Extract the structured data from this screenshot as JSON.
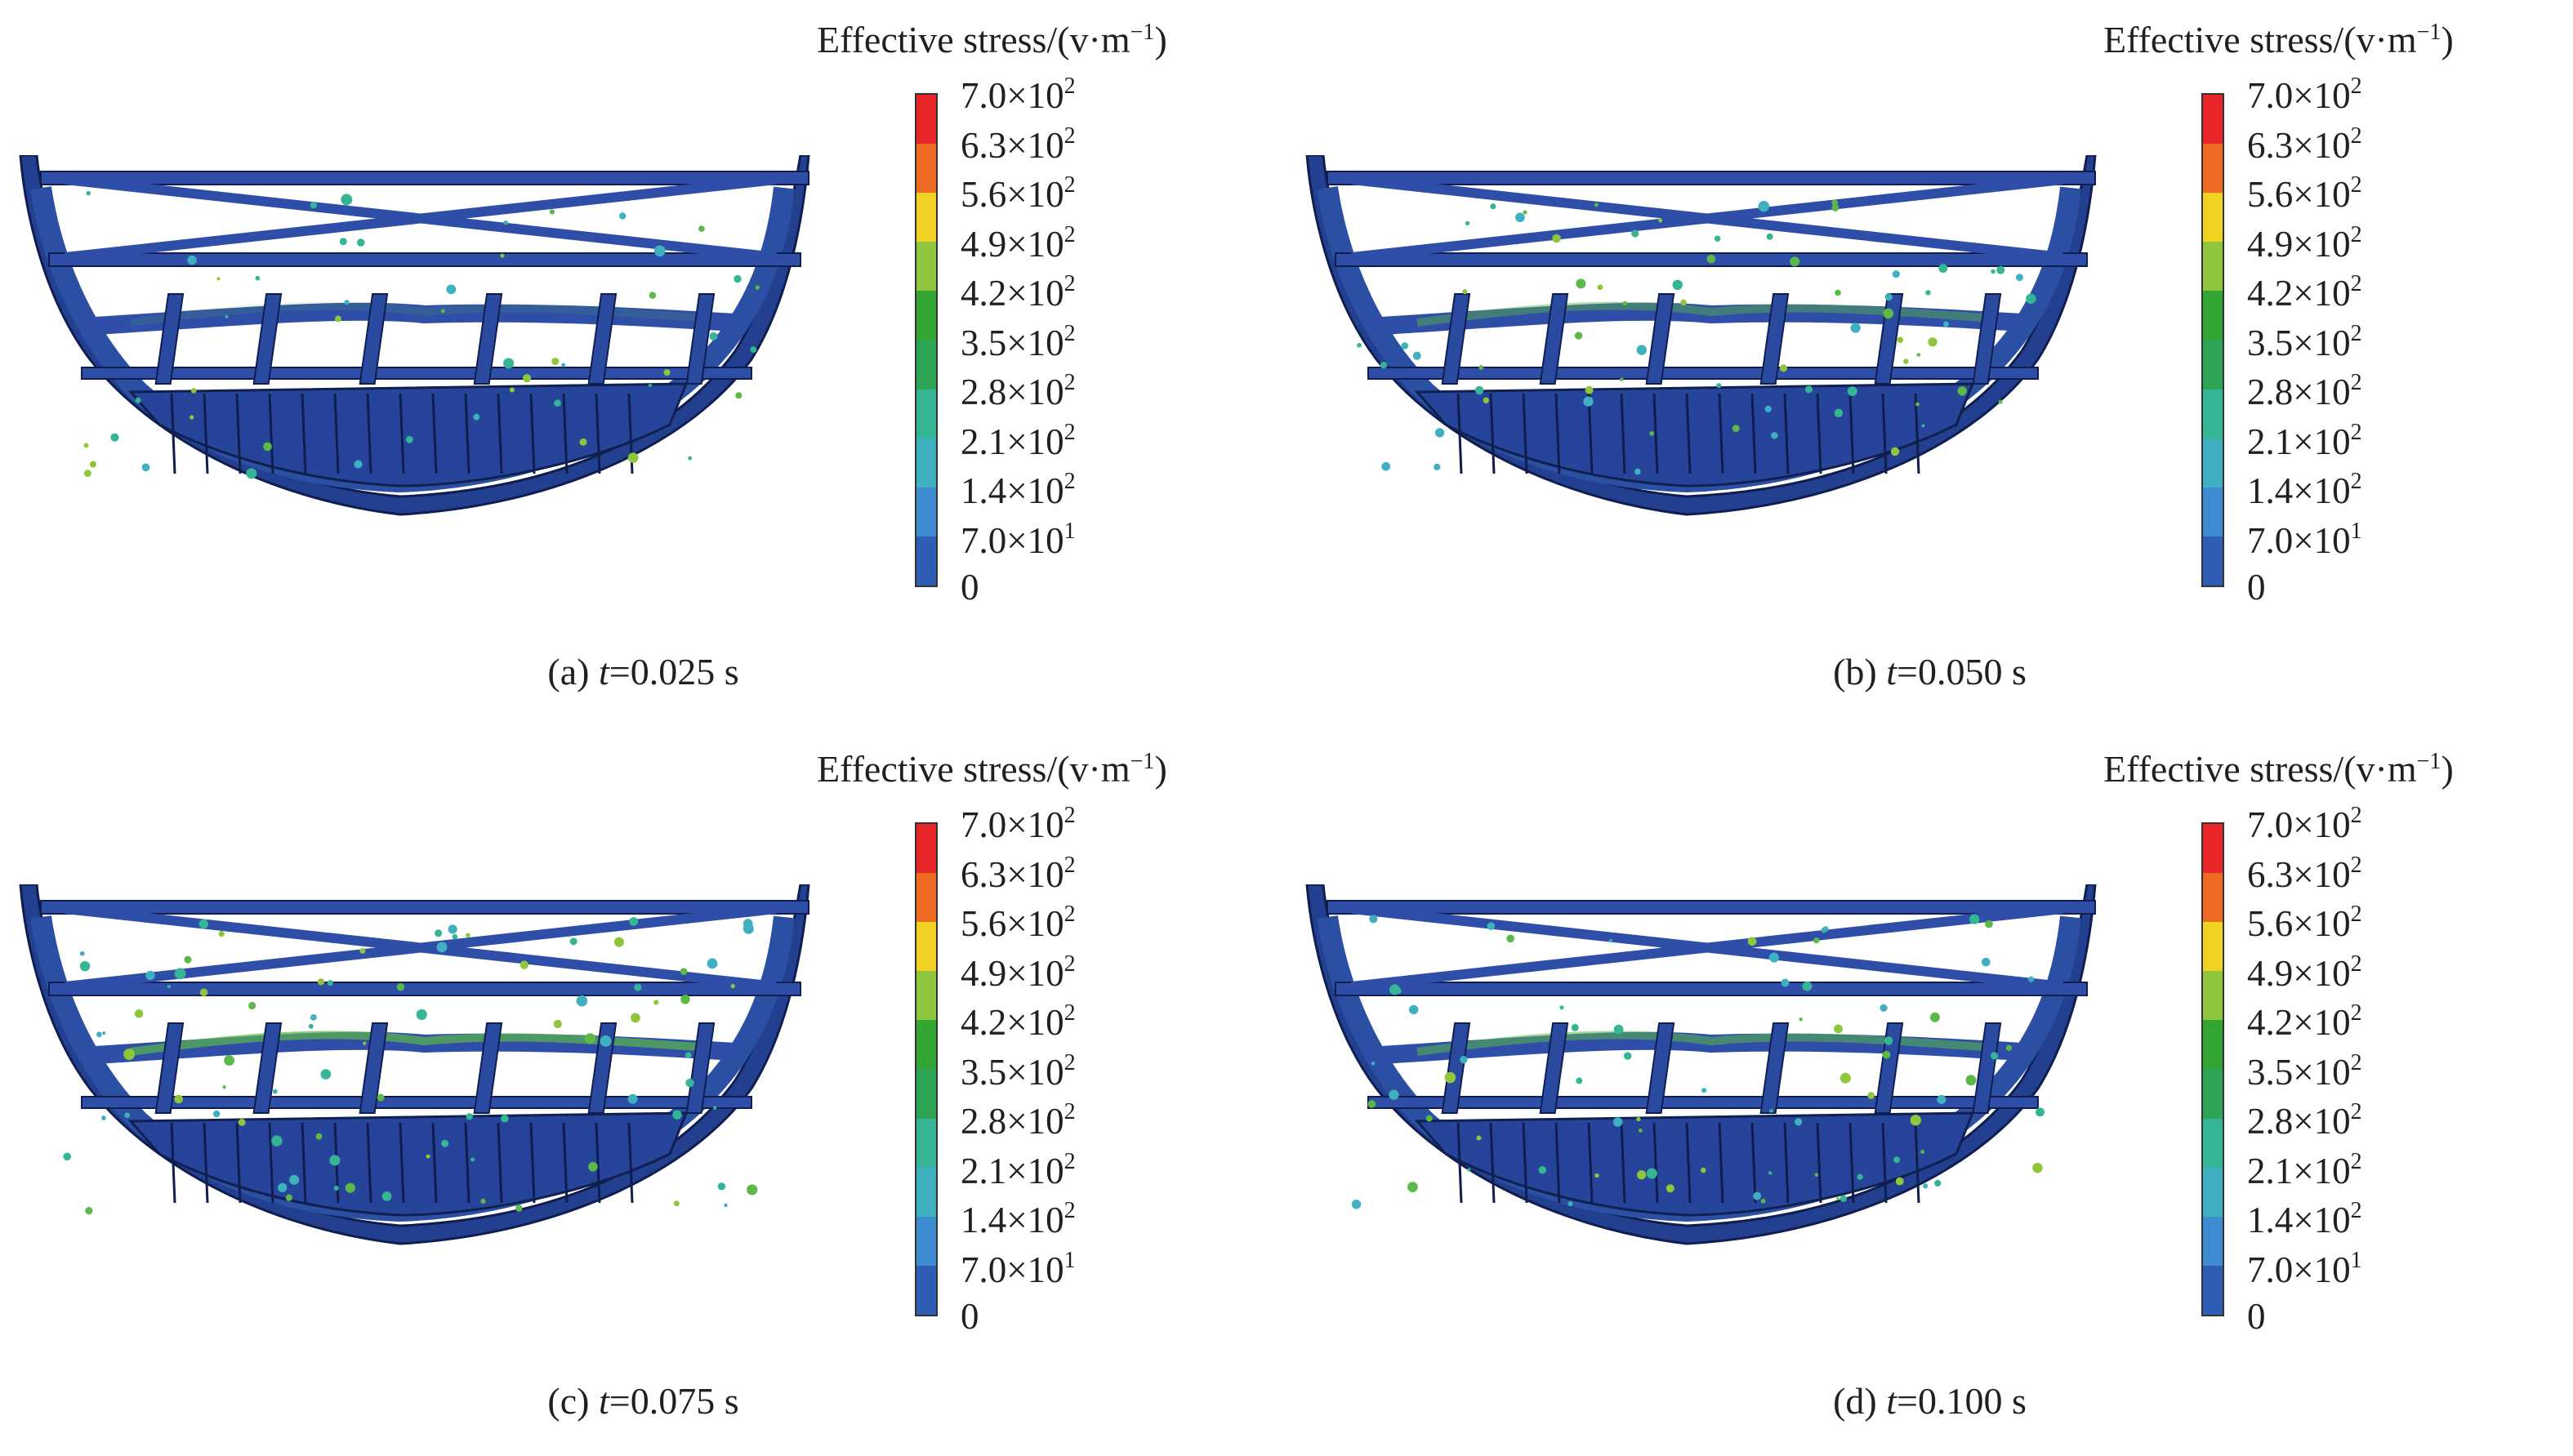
{
  "legend": {
    "title": "Effective stress/(v·m",
    "title_sup": "−1",
    "title_close": ")",
    "ticks": [
      {
        "mant": "7.0×10",
        "exp": "2"
      },
      {
        "mant": "6.3×10",
        "exp": "2"
      },
      {
        "mant": "5.6×10",
        "exp": "2"
      },
      {
        "mant": "4.9×10",
        "exp": "2"
      },
      {
        "mant": "4.2×10",
        "exp": "2"
      },
      {
        "mant": "3.5×10",
        "exp": "2"
      },
      {
        "mant": "2.8×10",
        "exp": "2"
      },
      {
        "mant": "2.1×10",
        "exp": "2"
      },
      {
        "mant": "1.4×10",
        "exp": "2"
      },
      {
        "mant": "7.0×10",
        "exp": "1"
      },
      {
        "mant": "0",
        "exp": ""
      }
    ],
    "colors": [
      "#e8262a",
      "#ee6a22",
      "#f1d122",
      "#8fc63d",
      "#33a532",
      "#2ea554",
      "#36b596",
      "#3fb0c0",
      "#3d8bd0",
      "#2f5cb5"
    ]
  },
  "panels": [
    {
      "label": "(a) ",
      "var": "t",
      "rest": "=0.025 s",
      "hot": 0.15
    },
    {
      "label": "(b) ",
      "var": "t",
      "rest": "=0.050 s",
      "hot": 0.45
    },
    {
      "label": "(c) ",
      "var": "t",
      "rest": "=0.075 s",
      "hot": 0.7
    },
    {
      "label": "(d) ",
      "var": "t",
      "rest": "=0.100 s",
      "hot": 0.55
    }
  ]
}
